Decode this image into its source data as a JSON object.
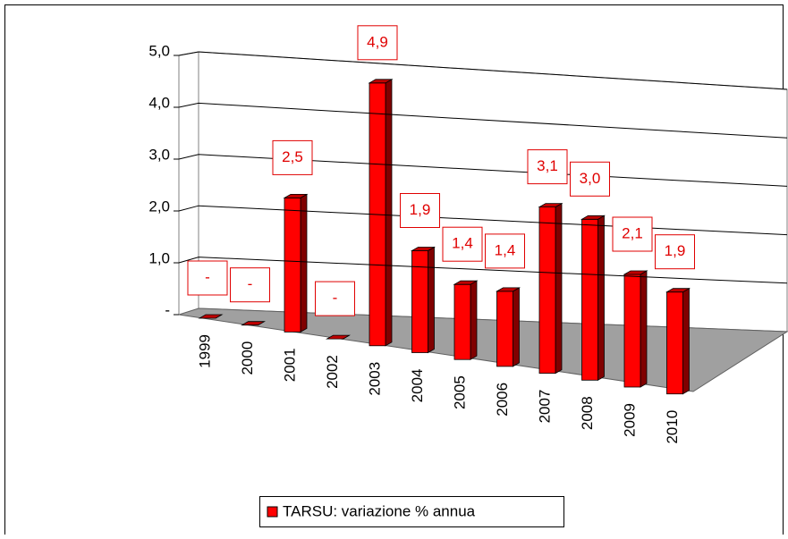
{
  "chart_data": {
    "type": "bar3d",
    "categories": [
      "1999",
      "2000",
      "2001",
      "2002",
      "2003",
      "2004",
      "2005",
      "2006",
      "2007",
      "2008",
      "2009",
      "2010"
    ],
    "series": [
      {
        "name": "TARSU: variazione % annua",
        "color": "#ff0000",
        "values": [
          0,
          0,
          2.5,
          0,
          4.9,
          1.9,
          1.4,
          1.4,
          3.1,
          3.0,
          2.1,
          1.9
        ],
        "value_labels": [
          "-",
          "-",
          "2,5",
          "-",
          "4,9",
          "1,9",
          "1,4",
          "1,4",
          "3,1",
          "3,0",
          "2,1",
          "1,9"
        ]
      }
    ],
    "ylim": [
      0,
      5
    ],
    "yticks": [
      {
        "value": 0,
        "label": "-"
      },
      {
        "value": 1,
        "label": "1,0"
      },
      {
        "value": 2,
        "label": "2,0"
      },
      {
        "value": 3,
        "label": "3,0"
      },
      {
        "value": 4,
        "label": "4,0"
      },
      {
        "value": 5,
        "label": "5,0"
      }
    ],
    "grid": true,
    "legend": "bottom"
  }
}
